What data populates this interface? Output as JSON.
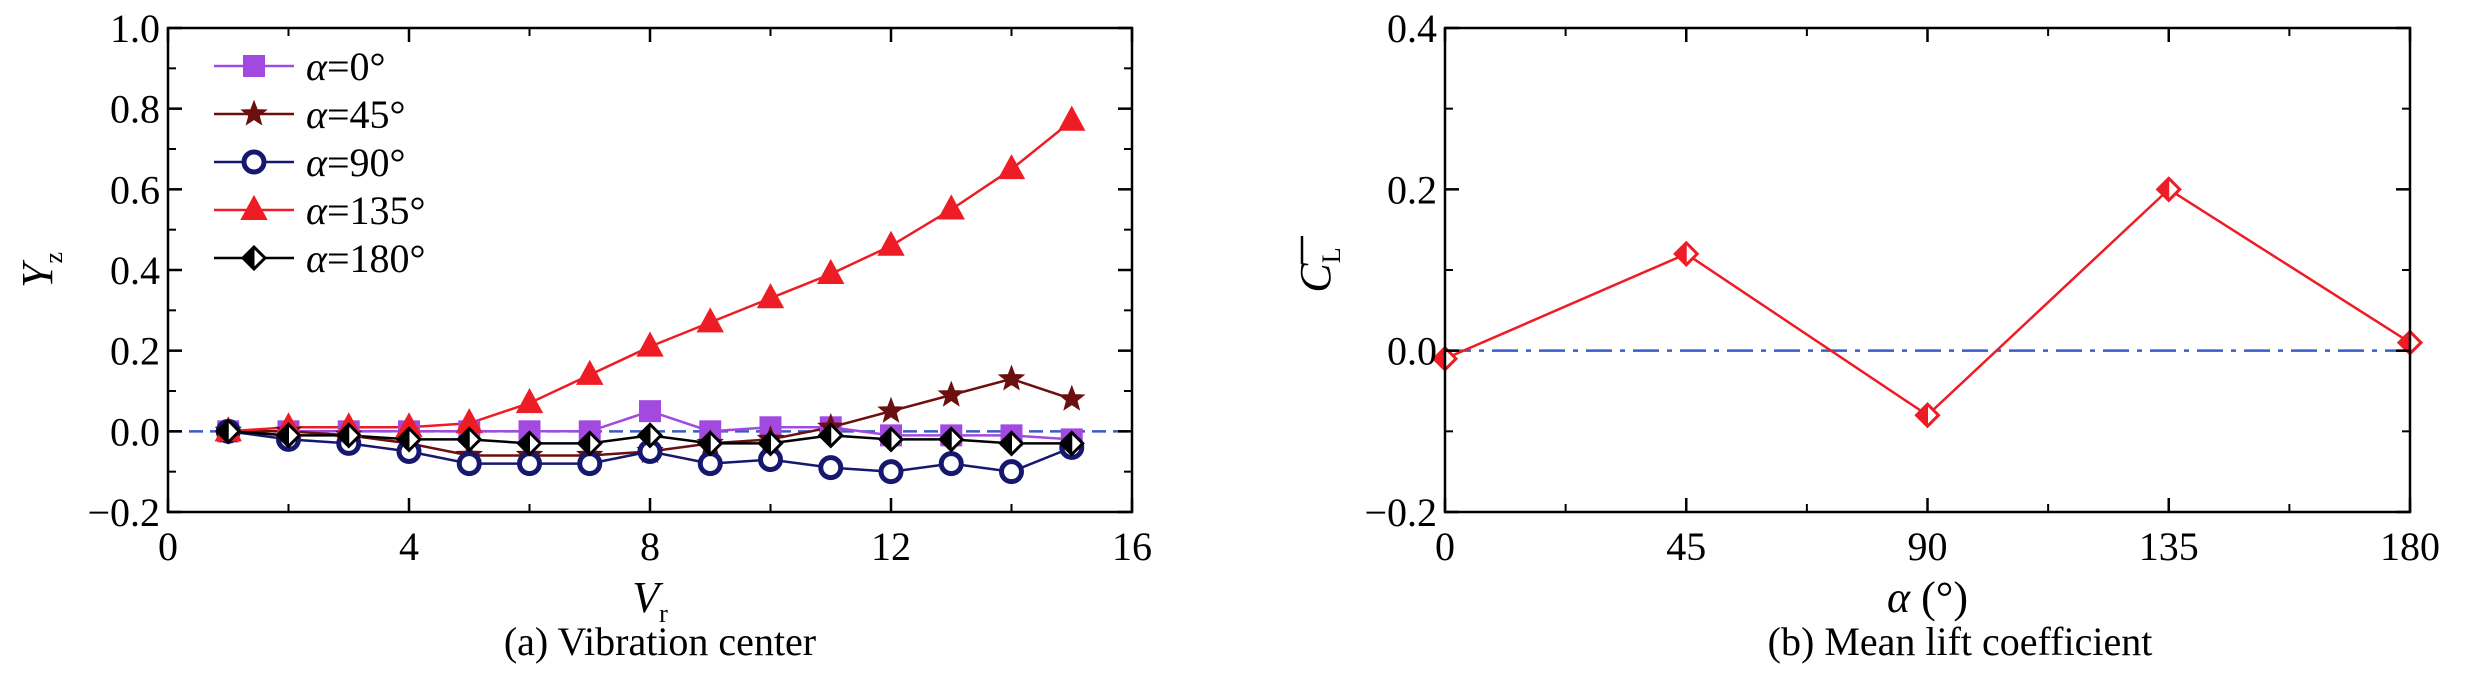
{
  "chart_data": [
    {
      "type": "line",
      "xlabel": "V",
      "xlabel_sub": "r",
      "ylabel": "Y",
      "ylabel_sub": "z",
      "caption": "(a) Vibration center",
      "xlim": [
        0,
        16
      ],
      "ylim": [
        -0.2,
        1.0
      ],
      "xticks": [
        "0",
        "4",
        "8",
        "12",
        "16"
      ],
      "yticks": [
        "−0.2",
        "0.0",
        "0.2",
        "0.4",
        "0.6",
        "0.8",
        "1.0"
      ],
      "reference_line": 0,
      "legend_position": "top-left",
      "x": [
        1,
        2,
        3,
        4,
        5,
        6,
        7,
        8,
        9,
        10,
        11,
        12,
        13,
        14,
        15
      ],
      "series": [
        {
          "name": "α=0°",
          "color": "#a24ae0",
          "marker": "square",
          "values": [
            0.0,
            0.0,
            0.0,
            0.0,
            0.0,
            0.0,
            0.0,
            0.05,
            0.0,
            0.01,
            0.01,
            -0.01,
            -0.01,
            -0.01,
            -0.02
          ]
        },
        {
          "name": "α=45°",
          "color": "#6b0f0f",
          "marker": "star",
          "values": [
            0.0,
            0.0,
            -0.01,
            -0.03,
            -0.06,
            -0.06,
            -0.06,
            -0.05,
            -0.03,
            -0.02,
            0.01,
            0.05,
            0.09,
            0.13,
            0.08
          ]
        },
        {
          "name": "α=90°",
          "color": "#15186e",
          "marker": "circle",
          "values": [
            0.0,
            -0.02,
            -0.03,
            -0.05,
            -0.08,
            -0.08,
            -0.08,
            -0.05,
            -0.08,
            -0.07,
            -0.09,
            -0.1,
            -0.08,
            -0.1,
            -0.04
          ]
        },
        {
          "name": "α=135°",
          "color": "#ee1c24",
          "marker": "triangle",
          "values": [
            0.0,
            0.01,
            0.01,
            0.01,
            0.02,
            0.07,
            0.14,
            0.21,
            0.27,
            0.33,
            0.39,
            0.46,
            0.55,
            0.65,
            0.77
          ]
        },
        {
          "name": "α=180°",
          "color": "#000000",
          "marker": "diamond",
          "values": [
            0.0,
            -0.01,
            -0.01,
            -0.02,
            -0.02,
            -0.03,
            -0.03,
            -0.01,
            -0.03,
            -0.03,
            -0.01,
            -0.02,
            -0.02,
            -0.03,
            -0.03
          ]
        }
      ]
    },
    {
      "type": "line",
      "xlabel": "α (°)",
      "ylabel": "C",
      "ylabel_sub": "L",
      "caption": "(b) Mean lift coefficient",
      "xlim": [
        0,
        180
      ],
      "ylim": [
        -0.2,
        0.4
      ],
      "xticks": [
        "0",
        "45",
        "90",
        "135",
        "180"
      ],
      "yticks": [
        "−0.2",
        "0.0",
        "0.2",
        "0.4"
      ],
      "reference_line": 0,
      "x": [
        0,
        45,
        90,
        135,
        180
      ],
      "series": [
        {
          "color": "#ee1c24",
          "marker": "diamond",
          "values": [
            -0.01,
            0.12,
            -0.08,
            0.2,
            0.01
          ]
        }
      ]
    }
  ]
}
